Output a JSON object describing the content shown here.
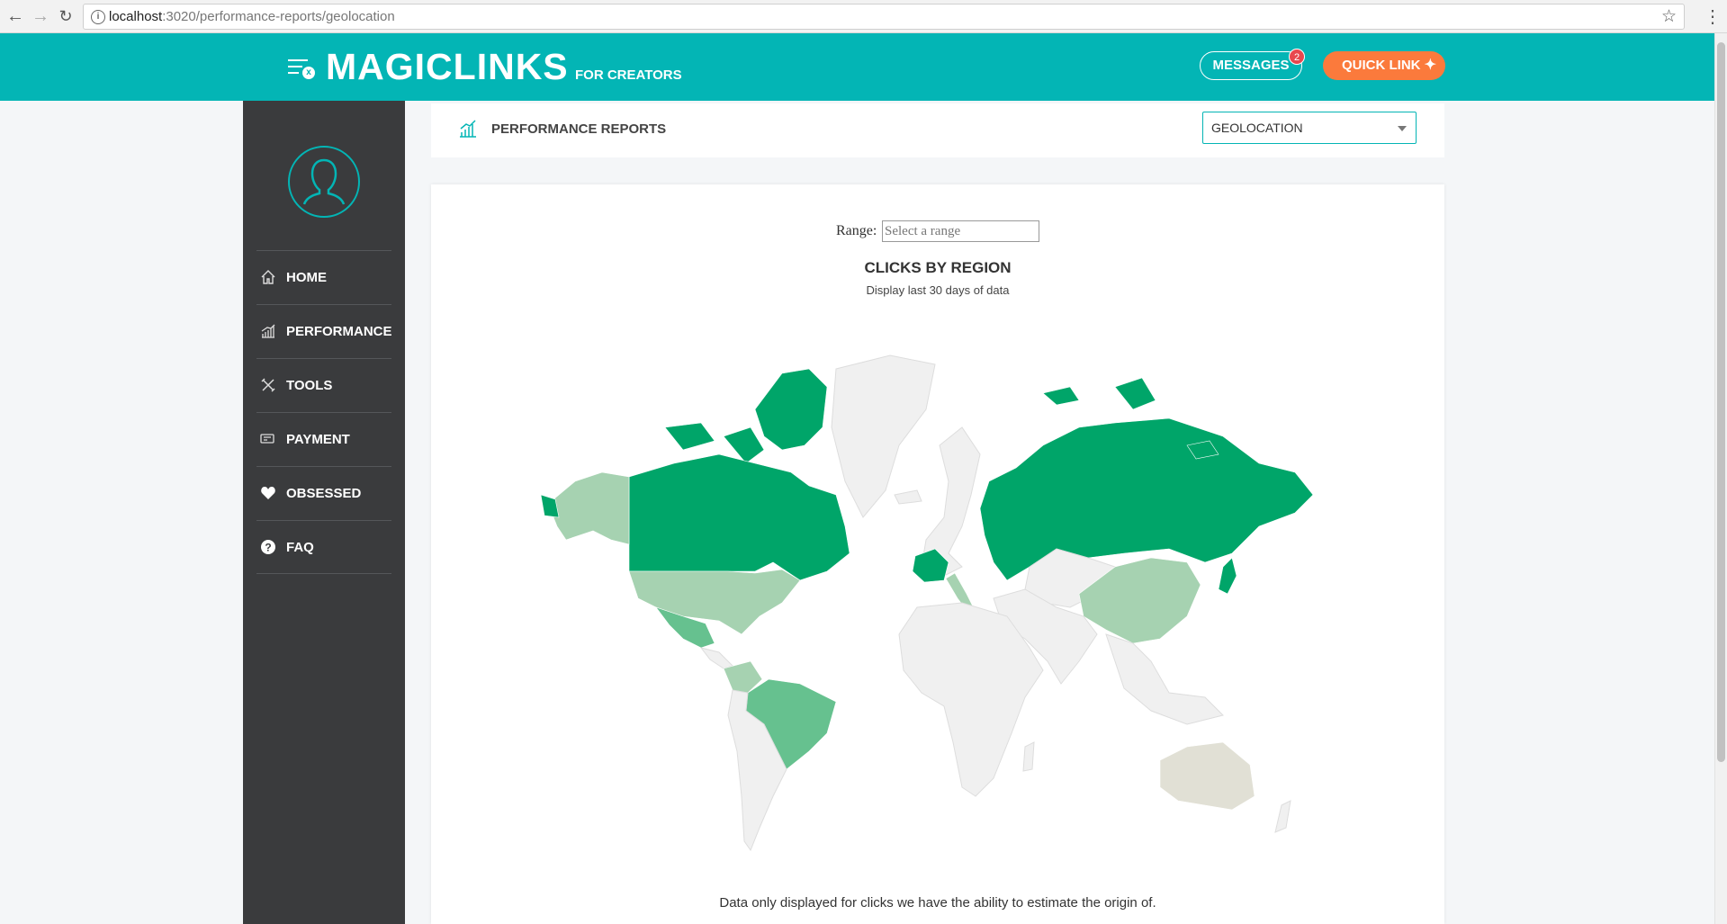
{
  "browser": {
    "url_host": "localhost",
    "url_path": ":3020/performance-reports/geolocation"
  },
  "header": {
    "logo": "MAGICLINKS",
    "logo_sub": "FOR CREATORS",
    "messages_label": "MESSAGES",
    "messages_count": "2",
    "quick_link_label": "QUICK LINK"
  },
  "sidebar": {
    "items": [
      {
        "label": "HOME",
        "icon": "home-icon"
      },
      {
        "label": "PERFORMANCE",
        "icon": "chart-icon"
      },
      {
        "label": "TOOLS",
        "icon": "tools-icon"
      },
      {
        "label": "PAYMENT",
        "icon": "payment-icon"
      },
      {
        "label": "OBSESSED",
        "icon": "heart-icon"
      },
      {
        "label": "FAQ",
        "icon": "question-icon"
      }
    ]
  },
  "page": {
    "title": "PERFORMANCE REPORTS",
    "report_select_value": "GEOLOCATION"
  },
  "report": {
    "range_label": "Range:",
    "range_placeholder": "Select a range",
    "title": "CLICKS BY REGION",
    "subtitle": "Display last 30 days of data",
    "footnote": "Data only displayed for clicks we have the ability to estimate the origin of."
  },
  "colors": {
    "brand": "#03b5b5",
    "accent": "#fb7a3c",
    "sidebar": "#3a3b3d",
    "map_high": "#00a569",
    "map_mid": "#66c18f",
    "map_low": "#a6d2b1",
    "map_australia": "#e1e0d5",
    "map_none": "#f0f0f0"
  }
}
